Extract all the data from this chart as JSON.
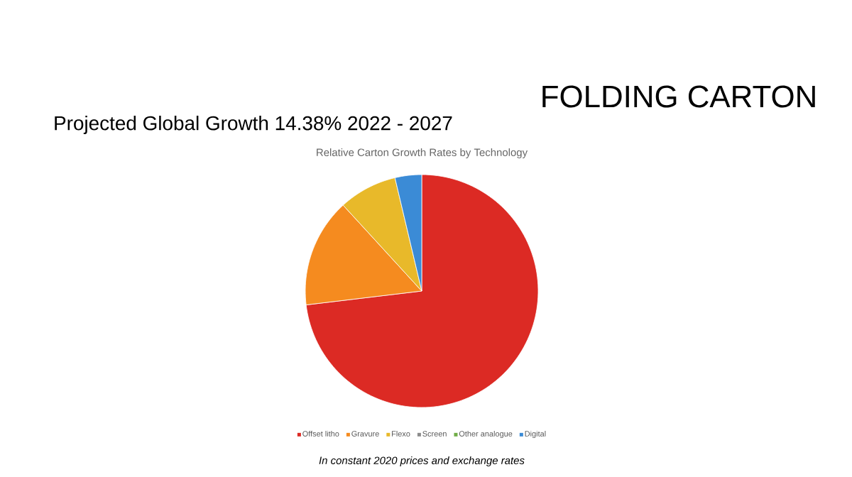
{
  "chart_data": {
    "type": "pie",
    "title": "FOLDING CARTON",
    "subtitle": "Projected Global Growth 14.38% 2022 - 2027",
    "annotations": [
      "Relative Carton Growth Rates by Technology",
      "In constant 2020 prices and exchange rates"
    ],
    "categories": [
      "Offset litho",
      "Gravure",
      "Flexo",
      "Screen",
      "Other analogue",
      "Digital"
    ],
    "values": [
      73.1,
      15.1,
      8.1,
      null,
      null,
      3.7
    ],
    "colors": [
      "#dc2a24",
      "#f58b1f",
      "#e8b92a",
      "#8c8c8c",
      "#70ad47",
      "#3b8bd6"
    ],
    "legend": "bottom"
  }
}
